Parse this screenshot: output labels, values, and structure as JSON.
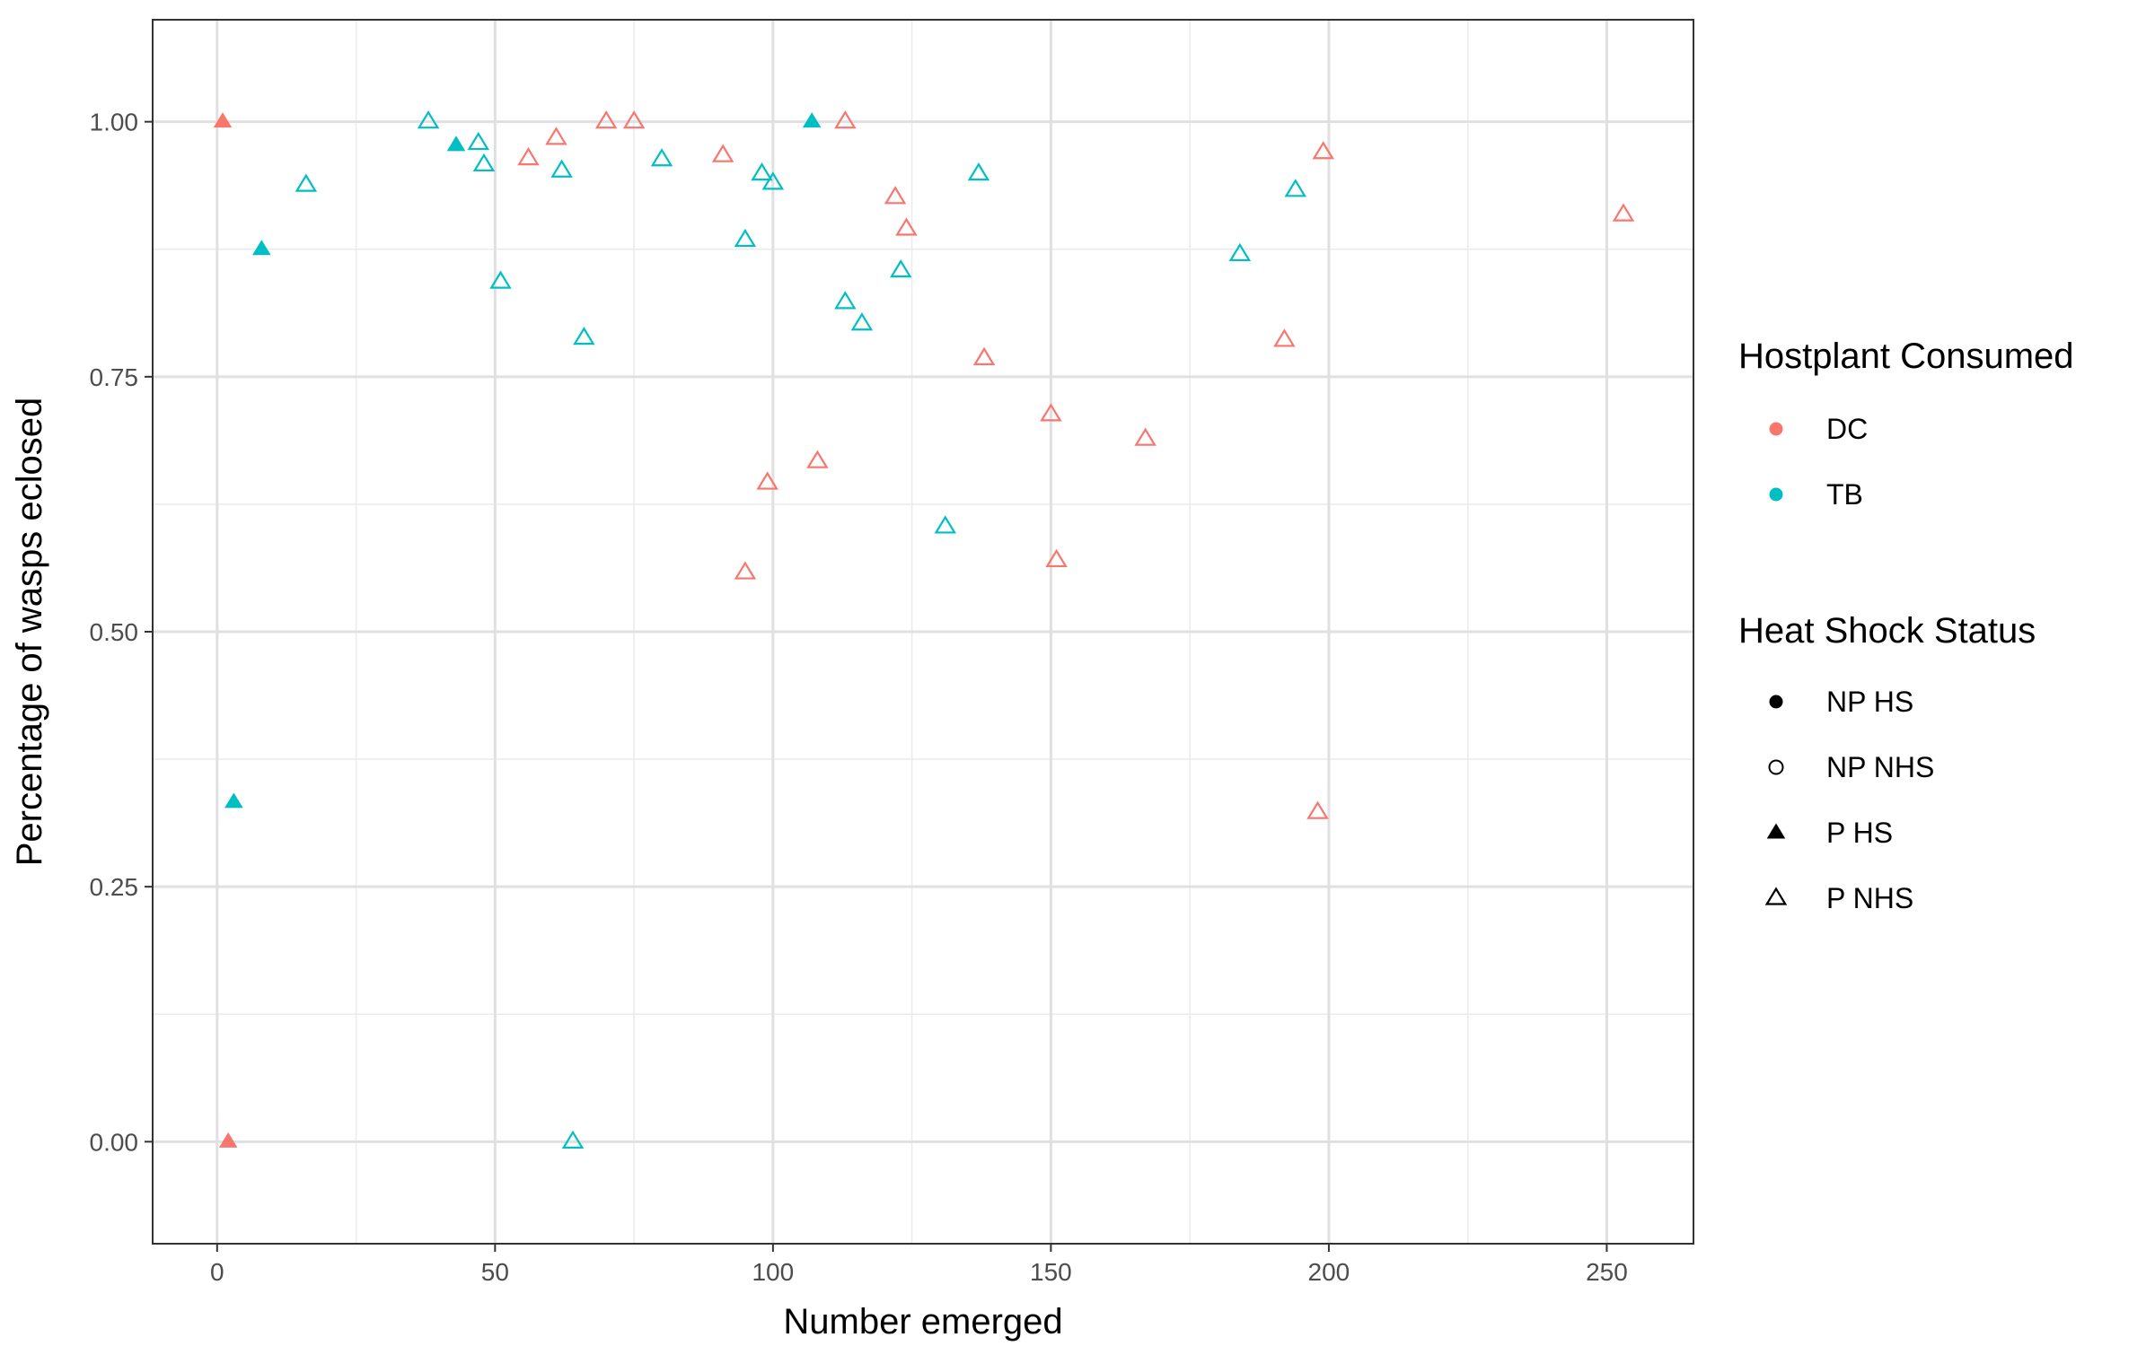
{
  "chart_data": {
    "type": "scatter",
    "xlabel": "Number emerged",
    "ylabel": "Percentage of wasps eclosed",
    "xlim": [
      -11.6,
      265.6
    ],
    "ylim": [
      -0.1,
      1.1
    ],
    "x_ticks": [
      0,
      50,
      100,
      150,
      200,
      250
    ],
    "x_tick_labels": [
      "0",
      "50",
      "100",
      "150",
      "200",
      "250"
    ],
    "y_ticks": [
      0,
      0.25,
      0.5,
      0.75,
      1.0
    ],
    "y_tick_labels": [
      "0.00",
      "0.25",
      "0.50",
      "0.75",
      "1.00"
    ],
    "grid": true,
    "legend_placement": "right",
    "colors": {
      "DC": "#F8766D",
      "TB": "#00BFC4"
    },
    "legends": [
      {
        "title": "Hostplant Consumed",
        "items": [
          {
            "label": "DC",
            "symbol": "circle-filled",
            "color": "#F8766D"
          },
          {
            "label": "TB",
            "symbol": "circle-filled",
            "color": "#00BFC4"
          }
        ]
      },
      {
        "title": "Heat Shock Status",
        "items": [
          {
            "label": "NP HS",
            "symbol": "circle-filled",
            "color": "#000000"
          },
          {
            "label": "NP NHS",
            "symbol": "circle-open",
            "color": "#000000"
          },
          {
            "label": "P HS",
            "symbol": "triangle-filled",
            "color": "#000000"
          },
          {
            "label": "P NHS",
            "symbol": "triangle-open",
            "color": "#000000"
          }
        ]
      }
    ],
    "points": [
      {
        "x": 1,
        "y": 1.0,
        "host": "DC",
        "status": "P HS"
      },
      {
        "x": 2,
        "y": 0.0,
        "host": "DC",
        "status": "P HS"
      },
      {
        "x": 3,
        "y": 0.333,
        "host": "TB",
        "status": "P HS"
      },
      {
        "x": 8,
        "y": 0.875,
        "host": "TB",
        "status": "P HS"
      },
      {
        "x": 43,
        "y": 0.977,
        "host": "TB",
        "status": "P HS"
      },
      {
        "x": 107,
        "y": 1.0,
        "host": "TB",
        "status": "P HS"
      },
      {
        "x": 16,
        "y": 0.938,
        "host": "TB",
        "status": "P NHS"
      },
      {
        "x": 38,
        "y": 1.0,
        "host": "TB",
        "status": "P NHS"
      },
      {
        "x": 47,
        "y": 0.979,
        "host": "TB",
        "status": "P NHS"
      },
      {
        "x": 48,
        "y": 0.958,
        "host": "TB",
        "status": "P NHS"
      },
      {
        "x": 51,
        "y": 0.843,
        "host": "TB",
        "status": "P NHS"
      },
      {
        "x": 62,
        "y": 0.952,
        "host": "TB",
        "status": "P NHS"
      },
      {
        "x": 64,
        "y": 0.0,
        "host": "TB",
        "status": "P NHS"
      },
      {
        "x": 66,
        "y": 0.788,
        "host": "TB",
        "status": "P NHS"
      },
      {
        "x": 80,
        "y": 0.963,
        "host": "TB",
        "status": "P NHS"
      },
      {
        "x": 95,
        "y": 0.884,
        "host": "TB",
        "status": "P NHS"
      },
      {
        "x": 98,
        "y": 0.949,
        "host": "TB",
        "status": "P NHS"
      },
      {
        "x": 100,
        "y": 0.94,
        "host": "TB",
        "status": "P NHS"
      },
      {
        "x": 113,
        "y": 0.823,
        "host": "TB",
        "status": "P NHS"
      },
      {
        "x": 116,
        "y": 0.802,
        "host": "TB",
        "status": "P NHS"
      },
      {
        "x": 123,
        "y": 0.854,
        "host": "TB",
        "status": "P NHS"
      },
      {
        "x": 131,
        "y": 0.603,
        "host": "TB",
        "status": "P NHS"
      },
      {
        "x": 137,
        "y": 0.949,
        "host": "TB",
        "status": "P NHS"
      },
      {
        "x": 184,
        "y": 0.87,
        "host": "TB",
        "status": "P NHS"
      },
      {
        "x": 194,
        "y": 0.933,
        "host": "TB",
        "status": "P NHS"
      },
      {
        "x": 56,
        "y": 0.964,
        "host": "DC",
        "status": "P NHS"
      },
      {
        "x": 61,
        "y": 0.984,
        "host": "DC",
        "status": "P NHS"
      },
      {
        "x": 70,
        "y": 1.0,
        "host": "DC",
        "status": "P NHS"
      },
      {
        "x": 75,
        "y": 1.0,
        "host": "DC",
        "status": "P NHS"
      },
      {
        "x": 91,
        "y": 0.967,
        "host": "DC",
        "status": "P NHS"
      },
      {
        "x": 95,
        "y": 0.558,
        "host": "DC",
        "status": "P NHS"
      },
      {
        "x": 99,
        "y": 0.646,
        "host": "DC",
        "status": "P NHS"
      },
      {
        "x": 108,
        "y": 0.667,
        "host": "DC",
        "status": "P NHS"
      },
      {
        "x": 113,
        "y": 1.0,
        "host": "DC",
        "status": "P NHS"
      },
      {
        "x": 122,
        "y": 0.926,
        "host": "DC",
        "status": "P NHS"
      },
      {
        "x": 124,
        "y": 0.895,
        "host": "DC",
        "status": "P NHS"
      },
      {
        "x": 138,
        "y": 0.768,
        "host": "DC",
        "status": "P NHS"
      },
      {
        "x": 150,
        "y": 0.713,
        "host": "DC",
        "status": "P NHS"
      },
      {
        "x": 151,
        "y": 0.57,
        "host": "DC",
        "status": "P NHS"
      },
      {
        "x": 167,
        "y": 0.689,
        "host": "DC",
        "status": "P NHS"
      },
      {
        "x": 192,
        "y": 0.786,
        "host": "DC",
        "status": "P NHS"
      },
      {
        "x": 198,
        "y": 0.323,
        "host": "DC",
        "status": "P NHS"
      },
      {
        "x": 199,
        "y": 0.97,
        "host": "DC",
        "status": "P NHS"
      },
      {
        "x": 253,
        "y": 0.909,
        "host": "DC",
        "status": "P NHS"
      }
    ]
  }
}
